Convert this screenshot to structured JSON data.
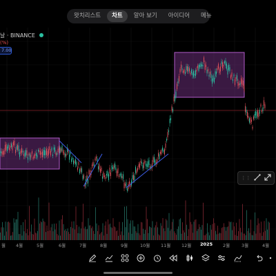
{
  "tabs": [
    {
      "label": "왓치리스트",
      "active": false
    },
    {
      "label": "차트",
      "active": true
    },
    {
      "label": "알아 보기",
      "active": false
    },
    {
      "label": "아이디어",
      "active": false
    },
    {
      "label": "메뉴",
      "active": false
    }
  ],
  "symbol": {
    "text": "날 · BINANCE",
    "status_color": "#2bbfa0"
  },
  "pct_label": "(%)",
  "price_chip": "7.00",
  "draw_tools": {
    "handle": "⋮⋮",
    "icons": [
      "draw-line-icon",
      "expand-icon"
    ]
  },
  "months": [
    {
      "label": "월",
      "bold": false
    },
    {
      "label": "4월",
      "bold": false
    },
    {
      "label": "5월",
      "bold": false
    },
    {
      "label": "6월",
      "bold": false
    },
    {
      "label": "7월",
      "bold": false
    },
    {
      "label": "8월",
      "bold": false
    },
    {
      "label": "9월",
      "bold": false
    },
    {
      "label": "10월",
      "bold": false
    },
    {
      "label": "11월",
      "bold": false
    },
    {
      "label": "12월",
      "bold": false
    },
    {
      "label": "2025",
      "bold": true
    },
    {
      "label": "2월",
      "bold": false
    },
    {
      "label": "3월",
      "bold": false
    },
    {
      "label": "4월",
      "bold": false
    }
  ],
  "toolbar": [
    "pencil-icon",
    "indicators-icon",
    "grid-icon",
    "add-icon",
    "alarm-icon",
    "replay-icon",
    "layers-icon",
    "settings-sliders-icon",
    "trend-icon",
    "undo-icon",
    "more-icon"
  ],
  "colors": {
    "up": "#2bbfa0",
    "down": "#e0525b",
    "box_fill": "#6a2e78",
    "box_stroke": "#b05ac8",
    "trendline": "#3d5ee8",
    "price_line": "#8b1f28"
  }
}
